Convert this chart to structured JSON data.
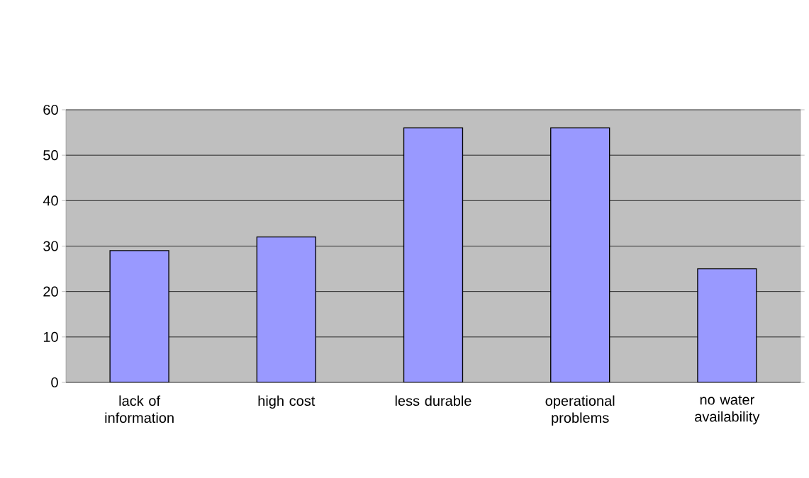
{
  "chart_data": {
    "type": "bar",
    "categories": [
      "lack of information",
      "high cost",
      "less durable",
      "operational problems",
      "no water availability"
    ],
    "values": [
      29,
      32,
      56,
      56,
      25
    ],
    "color": "#9999ff",
    "ylim": [
      0,
      60
    ],
    "yticks": [
      0,
      10,
      20,
      30,
      40,
      50,
      60
    ],
    "grid": "y"
  }
}
